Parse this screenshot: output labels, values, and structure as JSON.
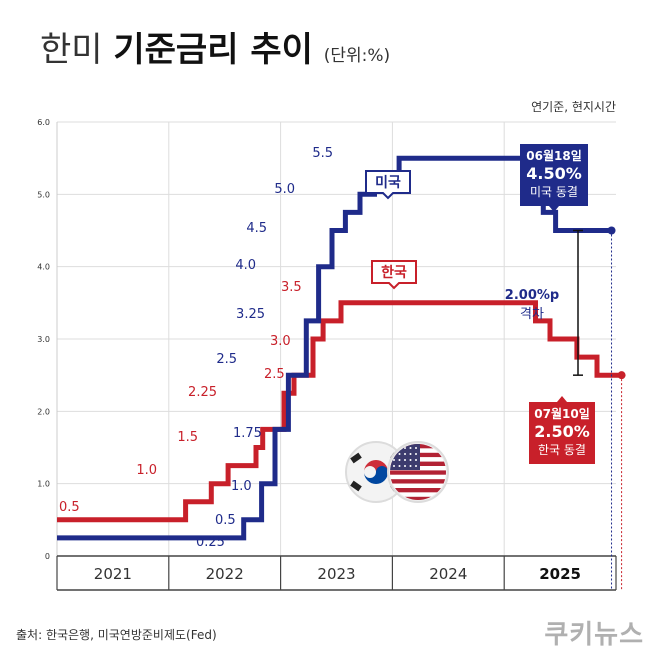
{
  "header": {
    "title_part1": "한미",
    "title_part2": "기준금리 추이",
    "unit": "(단위:%)",
    "note": "연기준, 현지시간"
  },
  "footer": {
    "source": "출처: 한국은행, 미국연방준비제도(Fed)",
    "brand": "쿠키뉴스"
  },
  "colors": {
    "us": "#1f2b8a",
    "kr": "#c8202a",
    "gap": "#111111"
  },
  "icons": [
    "korea-flag-icon",
    "usa-flag-icon"
  ],
  "chart_data": {
    "type": "line",
    "step": true,
    "xlim": [
      2020.5,
      2025.5
    ],
    "ylim": [
      0,
      6
    ],
    "yticks": [
      "0",
      "1.0",
      "2.0",
      "3.0",
      "4.0",
      "5.0",
      "6.0"
    ],
    "xticks": [
      "2021",
      "2022",
      "2023",
      "2024",
      "2025"
    ],
    "highlight_xtick": "2025",
    "grid": true,
    "series": [
      {
        "name": "미국",
        "color": "#1f2b8a",
        "points": [
          [
            2020.5,
            0.25
          ],
          [
            2022.17,
            0.5
          ],
          [
            2022.33,
            1.0
          ],
          [
            2022.45,
            1.75
          ],
          [
            2022.57,
            2.5
          ],
          [
            2022.73,
            3.25
          ],
          [
            2022.84,
            4.0
          ],
          [
            2022.96,
            4.5
          ],
          [
            2023.08,
            4.75
          ],
          [
            2023.21,
            5.0
          ],
          [
            2023.34,
            5.25
          ],
          [
            2023.56,
            5.5
          ],
          [
            2024.71,
            5.0
          ],
          [
            2024.85,
            4.75
          ],
          [
            2024.96,
            4.5
          ],
          [
            2025.46,
            4.5
          ]
        ],
        "value_labels": [
          "0.25",
          "0.5",
          "1.0",
          "1.75",
          "2.5",
          "3.25",
          "4.0",
          "4.5",
          "5.0",
          "5.5"
        ]
      },
      {
        "name": "한국",
        "color": "#c8202a",
        "points": [
          [
            2020.5,
            0.5
          ],
          [
            2021.65,
            0.75
          ],
          [
            2021.88,
            1.0
          ],
          [
            2022.03,
            1.25
          ],
          [
            2022.28,
            1.5
          ],
          [
            2022.34,
            1.75
          ],
          [
            2022.53,
            2.25
          ],
          [
            2022.62,
            2.5
          ],
          [
            2022.79,
            3.0
          ],
          [
            2022.88,
            3.25
          ],
          [
            2023.04,
            3.5
          ],
          [
            2024.78,
            3.25
          ],
          [
            2024.91,
            3.0
          ],
          [
            2025.15,
            2.75
          ],
          [
            2025.33,
            2.5
          ],
          [
            2025.55,
            2.5
          ]
        ],
        "value_labels": [
          "0.5",
          "1.0",
          "1.5",
          "2.25",
          "2.5",
          "3.0",
          "3.5"
        ]
      }
    ],
    "annotations": {
      "us": {
        "date": "06월18일",
        "rate": "4.50%",
        "status": "미국 동결"
      },
      "kr": {
        "date": "07월10일",
        "rate": "2.50%",
        "status": "한국 동결"
      },
      "gap": {
        "value": "2.00%p",
        "label": "격차"
      }
    }
  }
}
